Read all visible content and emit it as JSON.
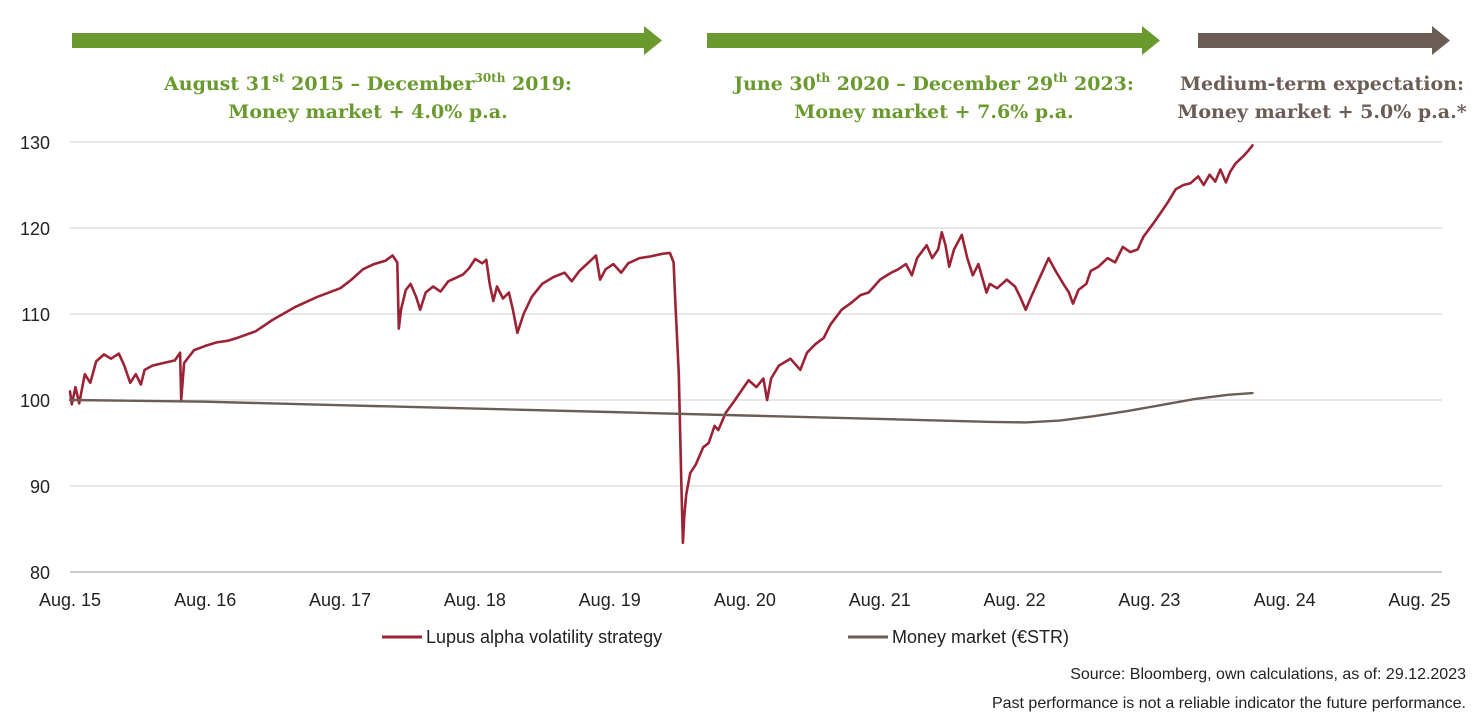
{
  "chart_data": {
    "type": "line",
    "title": "",
    "xlabel": "",
    "ylabel": "",
    "ylim": [
      80,
      130
    ],
    "yticks": [
      "130",
      "120",
      "110",
      "100",
      "90",
      "80"
    ],
    "xlim": [
      "2015-08-31",
      "2025-10-31"
    ],
    "xticks": [
      {
        "date": "2015-08-31",
        "label": "Aug. 15"
      },
      {
        "date": "2016-08-31",
        "label": "Aug. 16"
      },
      {
        "date": "2017-08-31",
        "label": "Aug. 17"
      },
      {
        "date": "2018-08-31",
        "label": "Aug. 18"
      },
      {
        "date": "2019-08-31",
        "label": "Aug. 19"
      },
      {
        "date": "2020-08-31",
        "label": "Aug. 20"
      },
      {
        "date": "2021-08-31",
        "label": "Aug. 21"
      },
      {
        "date": "2022-08-31",
        "label": "Aug. 22"
      },
      {
        "date": "2023-08-31",
        "label": "Aug. 23"
      },
      {
        "date": "2024-08-31",
        "label": "Aug. 24"
      },
      {
        "date": "2025-08-31",
        "label": "Aug. 25"
      }
    ],
    "grid": true,
    "legend_position": "bottom",
    "series": [
      {
        "name": "Lupus alpha volatility strategy",
        "color": "#9b2335",
        "points": [
          [
            "2015-08-31",
            101.0
          ],
          [
            "2015-09-05",
            99.5
          ],
          [
            "2015-09-15",
            101.5
          ],
          [
            "2015-09-25",
            99.6
          ],
          [
            "2015-10-10",
            103.0
          ],
          [
            "2015-10-25",
            102.0
          ],
          [
            "2015-11-10",
            104.5
          ],
          [
            "2015-12-01",
            105.3
          ],
          [
            "2015-12-20",
            104.8
          ],
          [
            "2016-01-10",
            105.4
          ],
          [
            "2016-01-25",
            104.0
          ],
          [
            "2016-02-10",
            102.0
          ],
          [
            "2016-02-25",
            103.0
          ],
          [
            "2016-03-10",
            101.8
          ],
          [
            "2016-03-20",
            103.5
          ],
          [
            "2016-04-10",
            104.0
          ],
          [
            "2016-05-10",
            104.3
          ],
          [
            "2016-06-10",
            104.6
          ],
          [
            "2016-06-24",
            105.5
          ],
          [
            "2016-06-27",
            100.0
          ],
          [
            "2016-07-05",
            104.3
          ],
          [
            "2016-08-01",
            105.8
          ],
          [
            "2016-09-01",
            106.3
          ],
          [
            "2016-10-01",
            106.7
          ],
          [
            "2016-11-01",
            106.9
          ],
          [
            "2016-12-01",
            107.3
          ],
          [
            "2017-01-15",
            108.0
          ],
          [
            "2017-03-01",
            109.3
          ],
          [
            "2017-05-01",
            110.8
          ],
          [
            "2017-07-01",
            112.0
          ],
          [
            "2017-09-01",
            113.0
          ],
          [
            "2017-10-01",
            114.0
          ],
          [
            "2017-11-01",
            115.2
          ],
          [
            "2017-12-01",
            115.8
          ],
          [
            "2018-01-01",
            116.2
          ],
          [
            "2018-01-20",
            116.8
          ],
          [
            "2018-02-02",
            116.0
          ],
          [
            "2018-02-06",
            108.3
          ],
          [
            "2018-02-12",
            110.5
          ],
          [
            "2018-02-25",
            112.8
          ],
          [
            "2018-03-10",
            113.5
          ],
          [
            "2018-03-25",
            112.0
          ],
          [
            "2018-04-05",
            110.5
          ],
          [
            "2018-04-20",
            112.5
          ],
          [
            "2018-05-10",
            113.2
          ],
          [
            "2018-05-30",
            112.6
          ],
          [
            "2018-06-20",
            113.8
          ],
          [
            "2018-07-10",
            114.2
          ],
          [
            "2018-07-30",
            114.6
          ],
          [
            "2018-08-15",
            115.3
          ],
          [
            "2018-09-01",
            116.4
          ],
          [
            "2018-09-20",
            115.9
          ],
          [
            "2018-10-01",
            116.3
          ],
          [
            "2018-10-10",
            113.5
          ],
          [
            "2018-10-20",
            111.5
          ],
          [
            "2018-10-30",
            113.2
          ],
          [
            "2018-11-15",
            111.8
          ],
          [
            "2018-12-01",
            112.5
          ],
          [
            "2018-12-12",
            110.5
          ],
          [
            "2018-12-24",
            107.8
          ],
          [
            "2019-01-10",
            110.0
          ],
          [
            "2019-02-01",
            112.0
          ],
          [
            "2019-03-01",
            113.5
          ],
          [
            "2019-04-01",
            114.3
          ],
          [
            "2019-05-01",
            114.8
          ],
          [
            "2019-05-20",
            113.8
          ],
          [
            "2019-06-10",
            115.0
          ],
          [
            "2019-07-10",
            116.2
          ],
          [
            "2019-07-25",
            116.8
          ],
          [
            "2019-08-05",
            114.0
          ],
          [
            "2019-08-20",
            115.2
          ],
          [
            "2019-09-10",
            115.8
          ],
          [
            "2019-10-01",
            114.8
          ],
          [
            "2019-10-20",
            115.9
          ],
          [
            "2019-11-20",
            116.5
          ],
          [
            "2019-12-20",
            116.7
          ],
          [
            "2020-01-20",
            117.0
          ],
          [
            "2020-02-10",
            117.1
          ],
          [
            "2020-02-20",
            116.0
          ],
          [
            "2020-02-25",
            111.0
          ],
          [
            "2020-03-05",
            103.0
          ],
          [
            "2020-03-12",
            90.0
          ],
          [
            "2020-03-16",
            83.4
          ],
          [
            "2020-03-20",
            86.5
          ],
          [
            "2020-03-25",
            89.0
          ],
          [
            "2020-04-05",
            91.5
          ],
          [
            "2020-04-20",
            92.5
          ],
          [
            "2020-05-10",
            94.5
          ],
          [
            "2020-05-25",
            95.0
          ],
          [
            "2020-06-10",
            97.0
          ],
          [
            "2020-06-20",
            96.5
          ],
          [
            "2020-07-10",
            98.5
          ],
          [
            "2020-08-01",
            99.8
          ],
          [
            "2020-08-20",
            101.0
          ],
          [
            "2020-09-10",
            102.3
          ],
          [
            "2020-10-01",
            101.5
          ],
          [
            "2020-10-20",
            102.5
          ],
          [
            "2020-10-30",
            100.0
          ],
          [
            "2020-11-10",
            102.5
          ],
          [
            "2020-12-01",
            104.0
          ],
          [
            "2021-01-01",
            104.8
          ],
          [
            "2021-01-28",
            103.5
          ],
          [
            "2021-02-15",
            105.5
          ],
          [
            "2021-03-10",
            106.5
          ],
          [
            "2021-04-01",
            107.2
          ],
          [
            "2021-04-20",
            108.8
          ],
          [
            "2021-05-20",
            110.5
          ],
          [
            "2021-06-15",
            111.3
          ],
          [
            "2021-07-10",
            112.2
          ],
          [
            "2021-08-01",
            112.5
          ],
          [
            "2021-09-01",
            114.0
          ],
          [
            "2021-10-01",
            114.8
          ],
          [
            "2021-10-20",
            115.2
          ],
          [
            "2021-11-10",
            115.8
          ],
          [
            "2021-11-26",
            114.5
          ],
          [
            "2021-12-10",
            116.5
          ],
          [
            "2022-01-05",
            118.0
          ],
          [
            "2022-01-20",
            116.5
          ],
          [
            "2022-02-05",
            117.5
          ],
          [
            "2022-02-15",
            119.5
          ],
          [
            "2022-02-25",
            118.0
          ],
          [
            "2022-03-07",
            115.5
          ],
          [
            "2022-03-20",
            117.5
          ],
          [
            "2022-04-10",
            119.2
          ],
          [
            "2022-04-25",
            116.5
          ],
          [
            "2022-05-10",
            114.5
          ],
          [
            "2022-05-25",
            115.8
          ],
          [
            "2022-06-16",
            112.5
          ],
          [
            "2022-06-25",
            113.5
          ],
          [
            "2022-07-15",
            113.0
          ],
          [
            "2022-08-10",
            114.0
          ],
          [
            "2022-09-01",
            113.2
          ],
          [
            "2022-09-15",
            112.0
          ],
          [
            "2022-09-30",
            110.5
          ],
          [
            "2022-10-15",
            112.0
          ],
          [
            "2022-11-10",
            114.5
          ],
          [
            "2022-12-01",
            116.5
          ],
          [
            "2022-12-20",
            115.0
          ],
          [
            "2023-01-10",
            113.5
          ],
          [
            "2023-01-25",
            112.5
          ],
          [
            "2023-02-05",
            111.2
          ],
          [
            "2023-02-20",
            112.8
          ],
          [
            "2023-03-13",
            113.5
          ],
          [
            "2023-03-25",
            115.0
          ],
          [
            "2023-04-15",
            115.5
          ],
          [
            "2023-05-10",
            116.5
          ],
          [
            "2023-05-30",
            116.0
          ],
          [
            "2023-06-20",
            117.8
          ],
          [
            "2023-07-10",
            117.2
          ],
          [
            "2023-07-30",
            117.5
          ],
          [
            "2023-08-15",
            119.0
          ],
          [
            "2023-09-10",
            120.5
          ],
          [
            "2023-10-01",
            121.8
          ],
          [
            "2023-10-20",
            123.0
          ],
          [
            "2023-11-10",
            124.5
          ],
          [
            "2023-12-01",
            125.0
          ],
          [
            "2023-12-20",
            125.2
          ],
          [
            "2024-01-10",
            126.0
          ],
          [
            "2024-01-25",
            125.0
          ],
          [
            "2024-02-10",
            126.2
          ],
          [
            "2024-02-25",
            125.4
          ],
          [
            "2024-03-10",
            126.8
          ],
          [
            "2024-03-25",
            125.3
          ],
          [
            "2024-04-05",
            126.5
          ],
          [
            "2024-04-20",
            127.5
          ],
          [
            "2024-05-10",
            128.3
          ],
          [
            "2024-05-25",
            129.0
          ],
          [
            "2024-06-05",
            129.6
          ]
        ]
      },
      {
        "name": "Money market (€STR)",
        "color": "#6b5d55",
        "points": [
          [
            "2015-08-31",
            100.0
          ],
          [
            "2016-08-31",
            99.8
          ],
          [
            "2017-08-31",
            99.4
          ],
          [
            "2018-08-31",
            99.0
          ],
          [
            "2019-08-31",
            98.6
          ],
          [
            "2020-08-31",
            98.2
          ],
          [
            "2021-08-31",
            97.8
          ],
          [
            "2022-06-30",
            97.45
          ],
          [
            "2022-09-30",
            97.4
          ],
          [
            "2022-12-31",
            97.6
          ],
          [
            "2023-03-31",
            98.1
          ],
          [
            "2023-06-30",
            98.7
          ],
          [
            "2023-09-30",
            99.4
          ],
          [
            "2023-12-31",
            100.1
          ],
          [
            "2024-03-31",
            100.6
          ],
          [
            "2024-06-05",
            100.8
          ]
        ]
      }
    ]
  },
  "periods": [
    {
      "line1_pre": "August 31",
      "line1_sup1": "st",
      "line1_mid": " 2015 – December",
      "line1_sup2": "30th",
      "line1_post": " 2019:",
      "line2": "Money market + 4.0% p.a.",
      "color": "#6a9a2e"
    },
    {
      "line1_pre": "June 30",
      "line1_sup1": "th",
      "line1_mid": " 2020 – December 29",
      "line1_sup2": "th",
      "line1_post": " 2023:",
      "line2": "Money market + 7.6% p.a.",
      "color": "#6a9a2e"
    },
    {
      "line1_pre": "Medium-term expectation:",
      "line2": "Money market + 5.0% p.a.*",
      "color": "#6b5d55"
    }
  ],
  "footer": {
    "source": "Source: Bloomberg, own calculations, as of: 29.12.2023",
    "disclaimer": "Past performance is not a reliable indicator the future performance."
  }
}
